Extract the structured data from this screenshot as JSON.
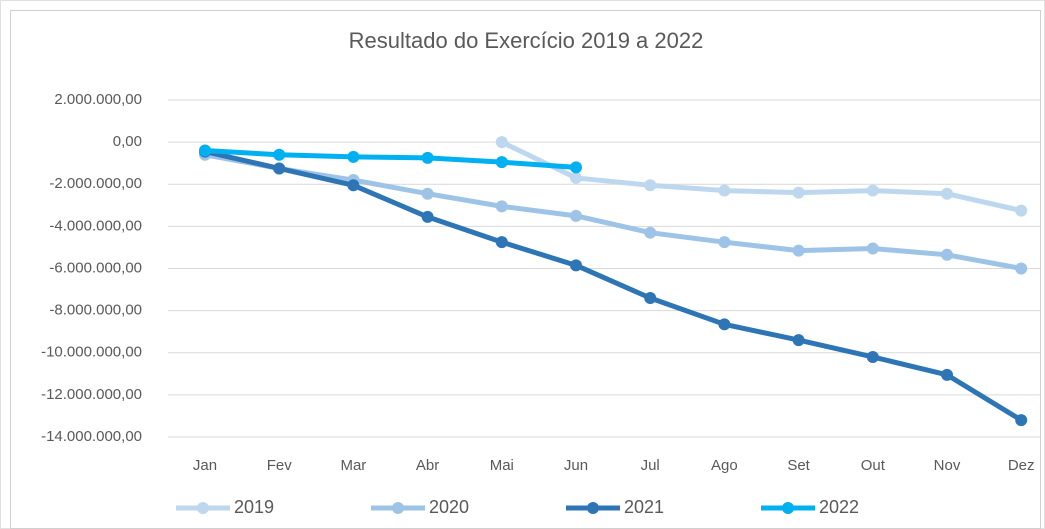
{
  "chart_data": {
    "type": "line",
    "title": "Resultado do Exercício 2019 a 2022",
    "categories": [
      "Jan",
      "Fev",
      "Mar",
      "Abr",
      "Mai",
      "Jun",
      "Jul",
      "Ago",
      "Set",
      "Out",
      "Nov",
      "Dez"
    ],
    "series": [
      {
        "name": "2019",
        "color": "#bdd7ee",
        "values": [
          null,
          null,
          null,
          null,
          0,
          -1700000,
          -2050000,
          -2300000,
          -2400000,
          -2300000,
          -2450000,
          -3250000
        ]
      },
      {
        "name": "2020",
        "color": "#9dc3e6",
        "values": [
          -600000,
          -1250000,
          -1800000,
          -2450000,
          -3050000,
          -3500000,
          -4300000,
          -4750000,
          -5150000,
          -5050000,
          -5350000,
          -6000000
        ]
      },
      {
        "name": "2021",
        "color": "#2e75b6",
        "values": [
          -450000,
          -1250000,
          -2050000,
          -3550000,
          -4750000,
          -5850000,
          -7400000,
          -8650000,
          -9400000,
          -10200000,
          -11050000,
          -13200000
        ]
      },
      {
        "name": "2022",
        "color": "#00b0f0",
        "values": [
          -400000,
          -600000,
          -700000,
          -750000,
          -950000,
          -1200000,
          null,
          null,
          null,
          null,
          null,
          null
        ]
      }
    ],
    "ylim": [
      -14000000,
      2000000
    ],
    "yticks": [
      {
        "value": -14000000,
        "label": "-14.000.000,00"
      },
      {
        "value": -12000000,
        "label": "-12.000.000,00"
      },
      {
        "value": -10000000,
        "label": "-10.000.000,00"
      },
      {
        "value": -8000000,
        "label": "-8.000.000,00"
      },
      {
        "value": -6000000,
        "label": "-6.000.000,00"
      },
      {
        "value": -4000000,
        "label": "-4.000.000,00"
      },
      {
        "value": -2000000,
        "label": "-2.000.000,00"
      },
      {
        "value": 0,
        "label": "0,00"
      },
      {
        "value": 2000000,
        "label": "2.000.000,00"
      }
    ],
    "grid": true,
    "legend": "bottom"
  }
}
